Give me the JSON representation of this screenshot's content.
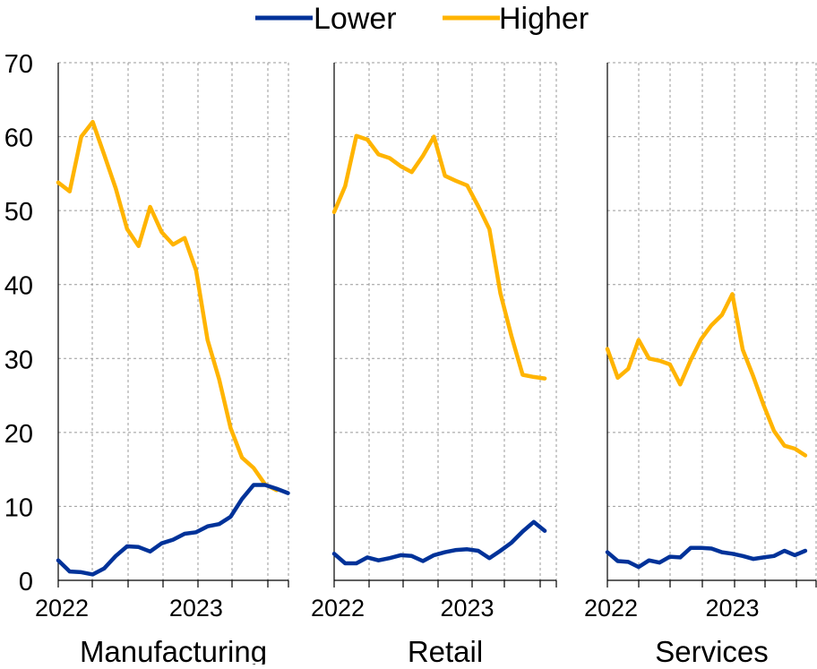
{
  "colors": {
    "lower": "#003299",
    "higher": "#FFB400",
    "grid": "#999999",
    "axis": "#000000"
  },
  "legend": [
    {
      "key": "lower",
      "label": "Lower"
    },
    {
      "key": "higher",
      "label": "Higher"
    }
  ],
  "chart_data": [
    {
      "type": "line",
      "xlabel": "Manufacturing",
      "ylim": [
        0,
        70
      ],
      "yticks": [
        0,
        10,
        20,
        30,
        40,
        50,
        60,
        70
      ],
      "xlim": [
        2022.0,
        2023.67
      ],
      "xtick_labels": [
        {
          "x": 2022.0,
          "label": "2022"
        },
        {
          "x": 2023.0,
          "label": "2023"
        }
      ],
      "series": [
        {
          "key": "lower",
          "name": "Lower",
          "x": [
            2022.0,
            2022.083,
            2022.167,
            2022.25,
            2022.333,
            2022.417,
            2022.5,
            2022.583,
            2022.667,
            2022.75,
            2022.833,
            2022.917,
            2023.0,
            2023.083,
            2023.167,
            2023.25,
            2023.333,
            2023.417,
            2023.5,
            2023.583,
            2023.667
          ],
          "y": [
            2.7,
            1.2,
            1.1,
            0.8,
            1.6,
            3.3,
            4.6,
            4.5,
            3.9,
            5.0,
            5.5,
            6.3,
            6.5,
            7.3,
            7.6,
            8.6,
            11.0,
            12.9,
            12.9,
            12.4,
            11.8
          ]
        },
        {
          "key": "higher",
          "name": "Higher",
          "x": [
            2022.0,
            2022.083,
            2022.167,
            2022.25,
            2022.333,
            2022.417,
            2022.5,
            2022.583,
            2022.667,
            2022.75,
            2022.833,
            2022.917,
            2023.0,
            2023.083,
            2023.167,
            2023.25,
            2023.333,
            2023.417,
            2023.5,
            2023.583,
            2023.667
          ],
          "y": [
            53.8,
            52.6,
            60.0,
            62.0,
            57.6,
            53.0,
            47.5,
            45.2,
            50.5,
            47.1,
            45.4,
            46.3,
            41.9,
            32.5,
            27.2,
            20.6,
            16.6,
            15.2,
            13.0,
            12.2,
            null
          ]
        }
      ]
    },
    {
      "type": "line",
      "xlabel": "Retail",
      "ylim": [
        0,
        70
      ],
      "yticks": [
        0,
        10,
        20,
        30,
        40,
        50,
        60,
        70
      ],
      "xlim": [
        2022.0,
        2023.67
      ],
      "xtick_labels": [
        {
          "x": 2022.0,
          "label": "2022"
        },
        {
          "x": 2023.0,
          "label": "2023"
        }
      ],
      "series": [
        {
          "key": "lower",
          "name": "Lower",
          "x": [
            2022.0,
            2022.083,
            2022.167,
            2022.25,
            2022.333,
            2022.417,
            2022.5,
            2022.583,
            2022.667,
            2022.75,
            2022.833,
            2022.917,
            2023.0,
            2023.083,
            2023.167,
            2023.25,
            2023.333,
            2023.417,
            2023.5,
            2023.583,
            2023.667
          ],
          "y": [
            3.6,
            2.3,
            2.3,
            3.1,
            2.7,
            3.0,
            3.4,
            3.3,
            2.6,
            3.4,
            3.8,
            4.1,
            4.2,
            4.0,
            3.0,
            4.0,
            5.1,
            6.6,
            7.9,
            6.7,
            null
          ]
        },
        {
          "key": "higher",
          "name": "Higher",
          "x": [
            2022.0,
            2022.083,
            2022.167,
            2022.25,
            2022.333,
            2022.417,
            2022.5,
            2022.583,
            2022.667,
            2022.75,
            2022.833,
            2022.917,
            2023.0,
            2023.083,
            2023.167,
            2023.25,
            2023.333,
            2023.417,
            2023.5,
            2023.583,
            2023.667
          ],
          "y": [
            49.8,
            53.3,
            60.1,
            59.6,
            57.6,
            57.1,
            56.0,
            55.2,
            57.4,
            60.0,
            54.7,
            54.0,
            53.4,
            50.6,
            47.5,
            38.8,
            33.0,
            27.8,
            27.5,
            27.3,
            null
          ]
        }
      ]
    },
    {
      "type": "line",
      "xlabel": "Services",
      "ylim": [
        0,
        70
      ],
      "yticks": [
        0,
        10,
        20,
        30,
        40,
        50,
        60,
        70
      ],
      "xlim": [
        2022.0,
        2023.67
      ],
      "xtick_labels": [
        {
          "x": 2022.0,
          "label": "2022"
        },
        {
          "x": 2023.0,
          "label": "2023"
        }
      ],
      "series": [
        {
          "key": "lower",
          "name": "Lower",
          "x": [
            2022.0,
            2022.083,
            2022.167,
            2022.25,
            2022.333,
            2022.417,
            2022.5,
            2022.583,
            2022.667,
            2022.75,
            2022.833,
            2022.917,
            2023.0,
            2023.083,
            2023.167,
            2023.25,
            2023.333,
            2023.417,
            2023.5,
            2023.583,
            2023.667
          ],
          "y": [
            3.8,
            2.6,
            2.5,
            1.8,
            2.7,
            2.4,
            3.2,
            3.1,
            4.4,
            4.4,
            4.3,
            3.8,
            3.6,
            3.3,
            2.9,
            3.1,
            3.3,
            4.0,
            3.4,
            4.0,
            null
          ]
        },
        {
          "key": "higher",
          "name": "Higher",
          "x": [
            2022.0,
            2022.083,
            2022.167,
            2022.25,
            2022.333,
            2022.417,
            2022.5,
            2022.583,
            2022.667,
            2022.75,
            2022.833,
            2022.917,
            2023.0,
            2023.083,
            2023.167,
            2023.25,
            2023.333,
            2023.417,
            2023.5,
            2023.583,
            2023.667
          ],
          "y": [
            31.3,
            27.4,
            28.6,
            32.5,
            30.0,
            29.7,
            29.2,
            26.5,
            29.8,
            32.6,
            34.5,
            35.9,
            38.7,
            31.2,
            27.6,
            23.7,
            20.2,
            18.2,
            17.8,
            16.9,
            null
          ]
        }
      ]
    }
  ]
}
